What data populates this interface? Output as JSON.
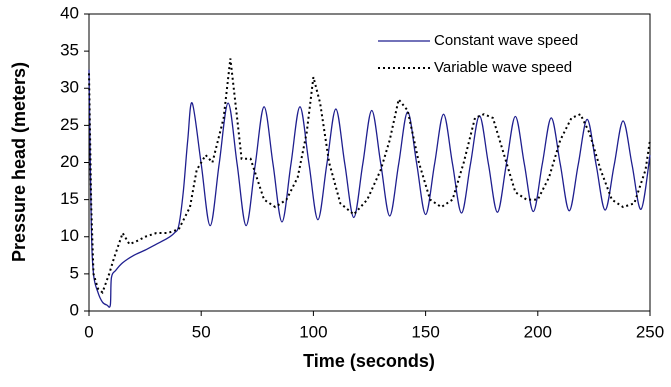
{
  "chart_data": {
    "type": "line",
    "x_label": "Time (seconds)",
    "y_label": "Pressure head (meters)",
    "xlim": [
      0,
      250
    ],
    "xticks": [
      0,
      50,
      100,
      150,
      200,
      250
    ],
    "ylim": [
      0,
      40
    ],
    "yticks": [
      0,
      5,
      10,
      15,
      20,
      25,
      30,
      35,
      40
    ],
    "legend": "top-right",
    "series": [
      {
        "name": "Constant wave speed",
        "color": "#1f1f8f",
        "style": "solid",
        "x": [
          0,
          1,
          2,
          4,
          6,
          8,
          9.5,
          10,
          12,
          15,
          20,
          25,
          30,
          35,
          38,
          40,
          42,
          44,
          46,
          50,
          54,
          58,
          62,
          66,
          70,
          74,
          78,
          82,
          86,
          90,
          94,
          98,
          102,
          106,
          110,
          114,
          118,
          122,
          126,
          130,
          134,
          138,
          142,
          146,
          150,
          154,
          158,
          162,
          166,
          170,
          174,
          178,
          182,
          186,
          190,
          194,
          198,
          202,
          206,
          210,
          214,
          218,
          222,
          226,
          230,
          234,
          238,
          242,
          246,
          250
        ],
        "values": [
          32.5,
          12,
          5,
          2.5,
          1.2,
          0.8,
          0.8,
          4.5,
          5.5,
          6.5,
          7.5,
          8.2,
          9,
          9.8,
          10.5,
          11.5,
          16,
          23,
          28,
          19.8,
          11.5,
          19.8,
          28,
          19.8,
          11.5,
          19.5,
          27.5,
          19.8,
          12,
          19.8,
          27.5,
          19.9,
          12.3,
          19.8,
          27.2,
          19.8,
          12.6,
          19.8,
          27,
          19.9,
          12.8,
          19.8,
          26.8,
          19.9,
          13,
          19.8,
          26.5,
          19.8,
          13.2,
          19.8,
          26.3,
          19.8,
          13.3,
          19.8,
          26.2,
          19.8,
          13.4,
          19.8,
          26,
          19.8,
          13.5,
          19.7,
          25.8,
          19.7,
          13.6,
          19.6,
          25.6,
          19.7,
          13.7,
          21
        ]
      },
      {
        "name": "Variable wave speed",
        "color": "#000000",
        "style": "dotted",
        "x": [
          0,
          1,
          2,
          4,
          6,
          9,
          11,
          15,
          18,
          22,
          25,
          30,
          35,
          40,
          45,
          48,
          52,
          55,
          60,
          63,
          66,
          68,
          72,
          78,
          83,
          88,
          93,
          97,
          100,
          103,
          107,
          112,
          118,
          124,
          130,
          134,
          138,
          142,
          147,
          152,
          157,
          162,
          167,
          172,
          176,
          180,
          185,
          190,
          195,
          200,
          205,
          210,
          215,
          219,
          223,
          228,
          233,
          238,
          243,
          248,
          250
        ],
        "values": [
          32,
          14,
          5,
          3,
          2.5,
          5,
          7,
          10.5,
          9,
          9.5,
          10,
          10.5,
          10.5,
          11,
          14,
          19,
          21,
          20,
          26,
          34,
          26,
          20.5,
          20.5,
          15,
          14,
          15,
          18,
          24,
          31.5,
          28,
          20,
          14.5,
          13,
          15,
          19,
          23,
          28.5,
          27,
          20,
          15,
          14,
          15,
          20,
          26,
          26.5,
          26,
          21,
          16,
          15,
          15,
          18,
          23,
          26,
          26.5,
          24,
          19,
          15,
          14,
          14.5,
          19,
          23
        ]
      }
    ]
  }
}
